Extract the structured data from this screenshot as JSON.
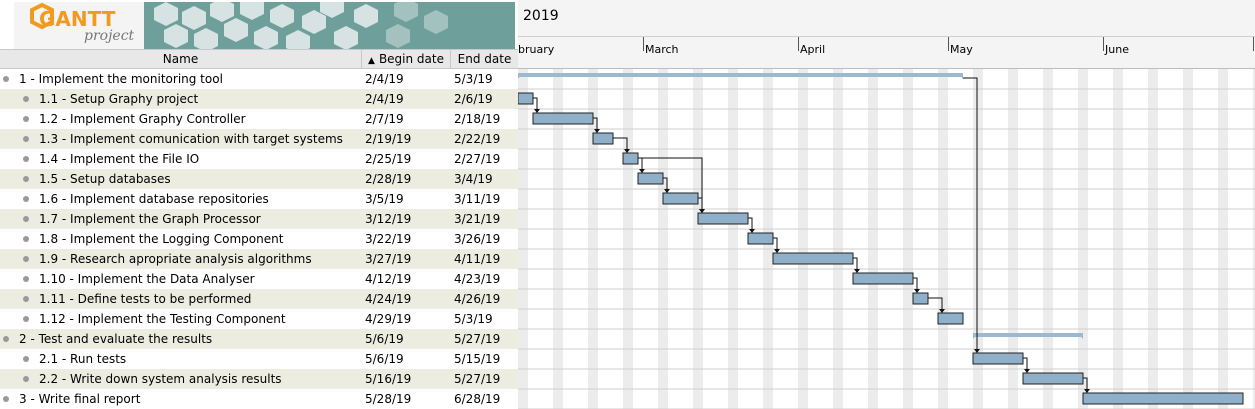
{
  "app": {
    "logo_text_main": "GANTT",
    "logo_text_sub": "project"
  },
  "table": {
    "columns": [
      "Name",
      "Begin date",
      "End date"
    ],
    "sort_indicator": "▲",
    "tasks": [
      {
        "name": "1 - Implement the monitoring tool",
        "begin": "2/4/19",
        "end": "5/3/19",
        "level": 0
      },
      {
        "name": "1.1 - Setup Graphy project",
        "begin": "2/4/19",
        "end": "2/6/19",
        "level": 1
      },
      {
        "name": "1.2 - Implement Graphy Controller",
        "begin": "2/7/19",
        "end": "2/18/19",
        "level": 1
      },
      {
        "name": "1.3 - Implement comunication with target systems",
        "begin": "2/19/19",
        "end": "2/22/19",
        "level": 1
      },
      {
        "name": "1.4 - Implement the File IO",
        "begin": "2/25/19",
        "end": "2/27/19",
        "level": 1
      },
      {
        "name": "1.5 - Setup databases",
        "begin": "2/28/19",
        "end": "3/4/19",
        "level": 1
      },
      {
        "name": "1.6 - Implement database repositories",
        "begin": "3/5/19",
        "end": "3/11/19",
        "level": 1
      },
      {
        "name": "1.7 - Implement the Graph Processor",
        "begin": "3/12/19",
        "end": "3/21/19",
        "level": 1
      },
      {
        "name": "1.8 - Implement the Logging Component",
        "begin": "3/22/19",
        "end": "3/26/19",
        "level": 1
      },
      {
        "name": "1.9 - Research apropriate analysis algorithms",
        "begin": "3/27/19",
        "end": "4/11/19",
        "level": 1
      },
      {
        "name": "1.10 - Implement the Data Analyser",
        "begin": "4/12/19",
        "end": "4/23/19",
        "level": 1
      },
      {
        "name": "1.11 - Define tests to be performed",
        "begin": "4/24/19",
        "end": "4/26/19",
        "level": 1
      },
      {
        "name": "1.12 - Implement the Testing Component",
        "begin": "4/29/19",
        "end": "5/3/19",
        "level": 1
      },
      {
        "name": "2 - Test and evaluate the results",
        "begin": "5/6/19",
        "end": "5/27/19",
        "level": 0
      },
      {
        "name": "2.1 - Run tests",
        "begin": "5/6/19",
        "end": "5/15/19",
        "level": 1
      },
      {
        "name": "2.2 - Write down system analysis results",
        "begin": "5/16/19",
        "end": "5/27/19",
        "level": 1
      },
      {
        "name": "3 - Write final report",
        "begin": "5/28/19",
        "end": "6/28/19",
        "level": 0
      }
    ]
  },
  "chart": {
    "year": "2019",
    "months": [
      "bruary",
      "March",
      "April",
      "May",
      "June"
    ],
    "colors": {
      "bar": "#8fb0c8",
      "summary": "#9bbad0",
      "weekend": "#ececec",
      "grid": "#cfcfcf"
    }
  }
}
